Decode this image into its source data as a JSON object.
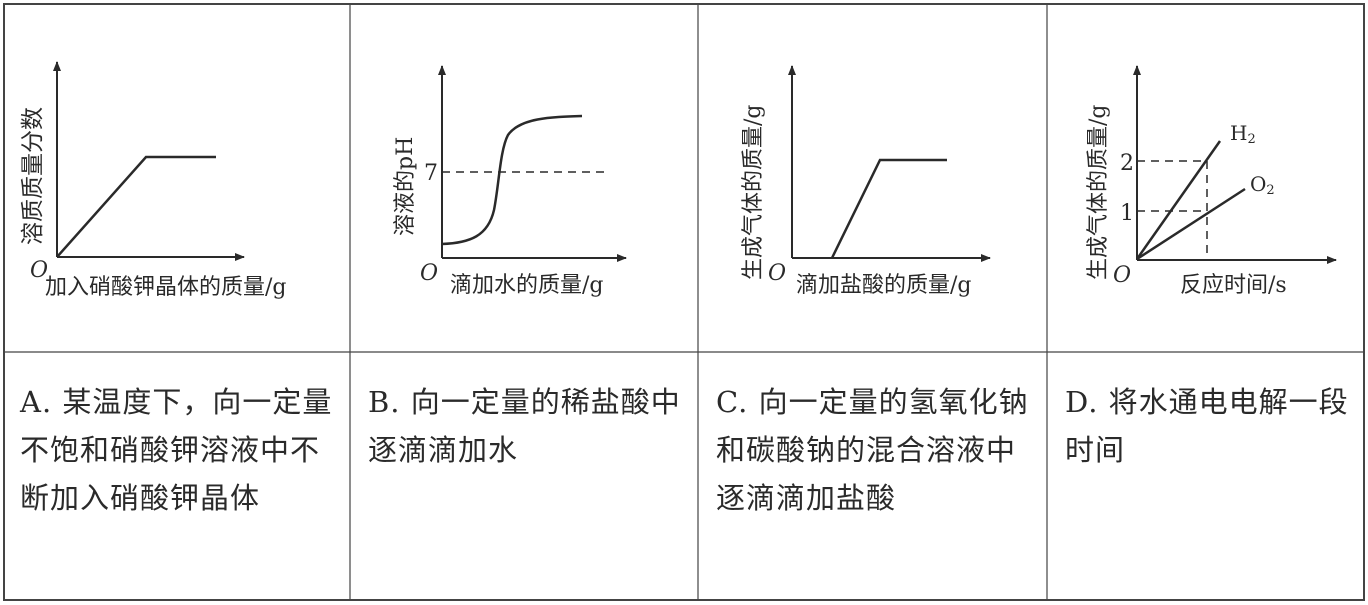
{
  "panels": [
    {
      "id": "A",
      "y_label": "溶质质量分数",
      "x_label": "加入硝酸钾晶体的质量/g",
      "origin": "O",
      "description": "A. 某温度下，向一定量不饱和硝酸钾溶液中不断加入硝酸钾晶体"
    },
    {
      "id": "B",
      "y_label": "溶液的pH",
      "x_label": "滴加水的质量/g",
      "origin": "O",
      "y_tick": "7",
      "description": "B. 向一定量的稀盐酸中逐滴滴加水"
    },
    {
      "id": "C",
      "y_label": "生成气体的质量/g",
      "x_label": "滴加盐酸的质量/g",
      "origin": "O",
      "description": "C. 向一定量的氢氧化钠和碳酸钠的混合溶液中逐滴滴加盐酸"
    },
    {
      "id": "D",
      "y_label": "生成气体的质量/g",
      "x_label": "反应时间/s",
      "origin": "O",
      "y_ticks": [
        "1",
        "2"
      ],
      "series": [
        {
          "name": "H₂",
          "label_main": "H",
          "label_sub": "2"
        },
        {
          "name": "O₂",
          "label_main": "O",
          "label_sub": "2"
        }
      ],
      "description": "D. 将水通电电解一段时间"
    }
  ]
}
